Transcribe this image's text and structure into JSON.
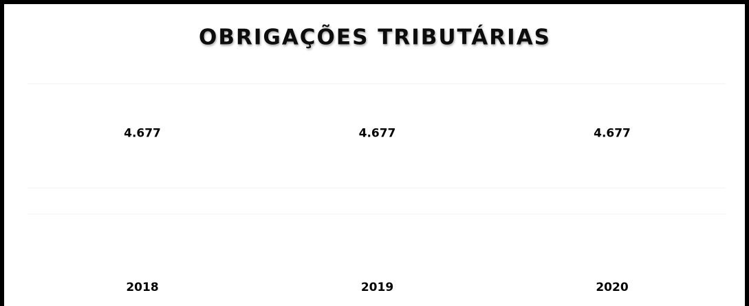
{
  "chart_data": {
    "type": "line",
    "title": "OBRIGAÇÕES TRIBUTÁRIAS",
    "categories": [
      "2018",
      "2019",
      "2020"
    ],
    "series": [
      {
        "values": [
          4677,
          4677,
          4677
        ],
        "value_labels": [
          "4.677",
          "4.677",
          "4.677"
        ],
        "color": "#4472c4"
      }
    ],
    "ylim": [
      0,
      8000
    ]
  }
}
